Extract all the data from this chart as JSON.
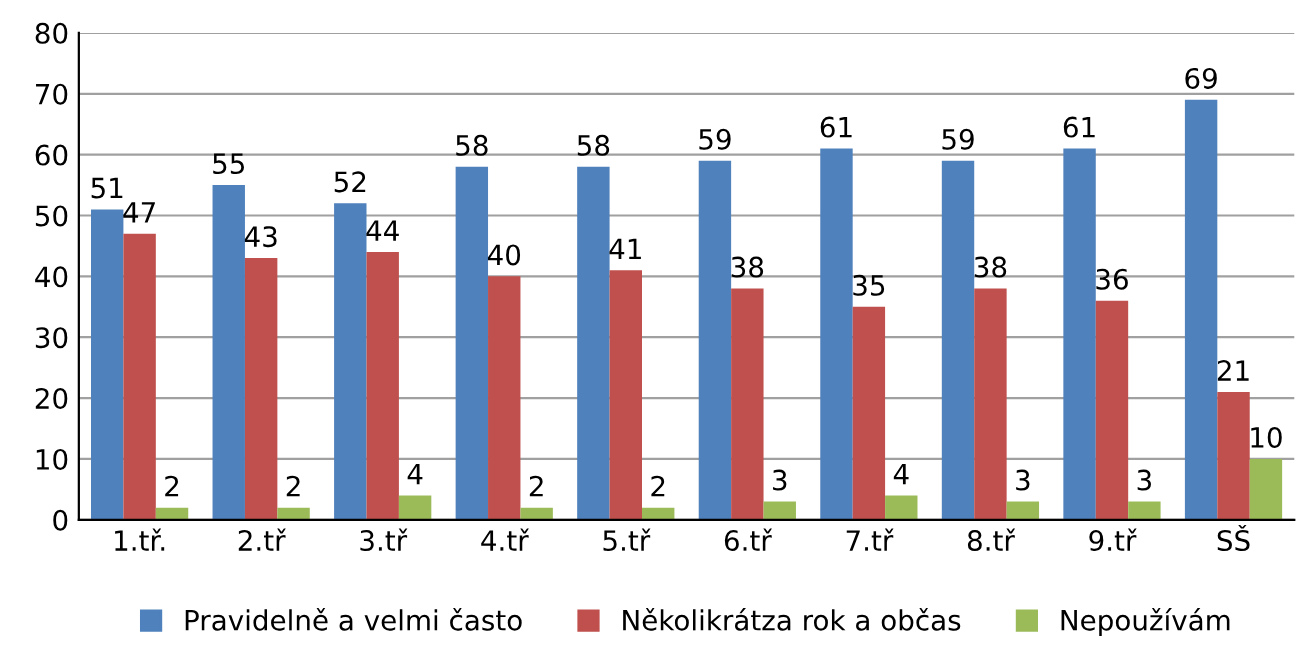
{
  "chart_data": {
    "type": "bar",
    "categories": [
      "1.tř.",
      "2.tř",
      "3.tř",
      "4.tř",
      "5.tř",
      "6.tř",
      "7.tř",
      "8.tř",
      "9.tř",
      "SŠ"
    ],
    "series": [
      {
        "name": "Pravidelně a velmi často",
        "color": "#4f81bd",
        "values": [
          51,
          55,
          52,
          58,
          58,
          59,
          61,
          59,
          61,
          69
        ]
      },
      {
        "name": "Několikrátza rok a občas",
        "color": "#c0504d",
        "values": [
          47,
          43,
          44,
          40,
          41,
          38,
          35,
          38,
          36,
          21
        ]
      },
      {
        "name": "Nepoužívám",
        "color": "#9bbb59",
        "values": [
          2,
          2,
          4,
          2,
          2,
          3,
          4,
          3,
          3,
          10
        ]
      }
    ],
    "ylim": [
      0,
      80
    ],
    "yticks": [
      0,
      10,
      20,
      30,
      40,
      50,
      60,
      70,
      80
    ],
    "grid": "y",
    "legend": "bottom",
    "data_labels": true
  }
}
